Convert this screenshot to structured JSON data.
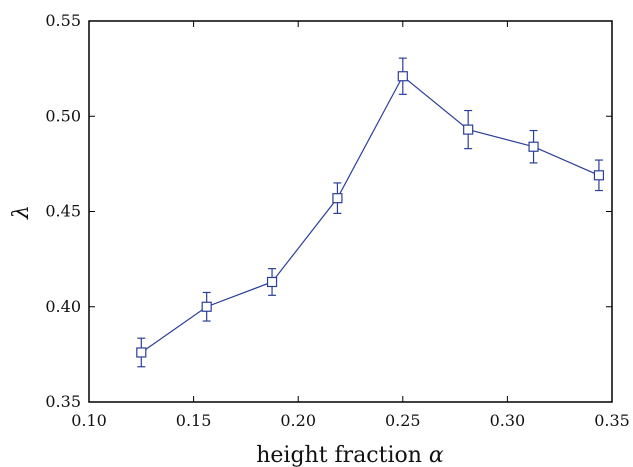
{
  "chart_data": {
    "type": "line",
    "xlabel_text": "height fraction",
    "xlabel_symbol": "α",
    "ylabel_symbol": "λ",
    "xlim": [
      0.1,
      0.35
    ],
    "ylim": [
      0.35,
      0.55
    ],
    "xticks": [
      "0.10",
      "0.15",
      "0.20",
      "0.25",
      "0.30",
      "0.35"
    ],
    "yticks": [
      "0.35",
      "0.40",
      "0.45",
      "0.50",
      "0.55"
    ],
    "grid": false,
    "marker": "square",
    "color": "#2b3f99",
    "series": [
      {
        "x": [
          0.125,
          0.15625,
          0.1875,
          0.21875,
          0.25,
          0.28125,
          0.3125,
          0.34375
        ],
        "y": [
          0.376,
          0.4,
          0.413,
          0.457,
          0.521,
          0.493,
          0.484,
          0.469
        ],
        "err": [
          0.0075,
          0.0075,
          0.007,
          0.008,
          0.0095,
          0.01,
          0.0085,
          0.008
        ]
      }
    ]
  }
}
